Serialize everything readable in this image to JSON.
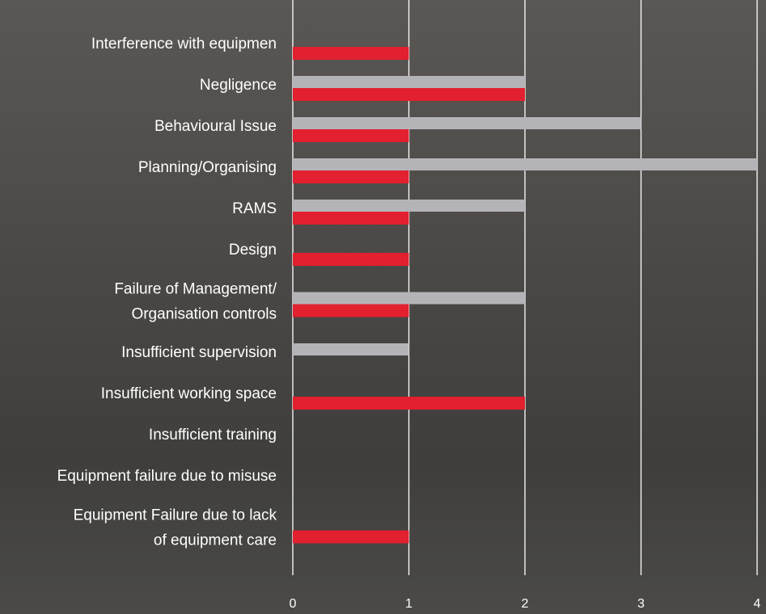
{
  "chart_data": {
    "type": "hbar",
    "categories": [
      "Interference with equipmen",
      "Negligence",
      "Behavioural Issue",
      "Planning/Organising",
      "RAMS",
      "Design",
      [
        "Failure of Management/",
        "Organisation controls"
      ],
      "Insufficient supervision",
      "Insufficient working space",
      "Insufficient training",
      "Equipment failure due to misuse",
      [
        "Equipment Failure due to lack",
        "of equipment care"
      ]
    ],
    "series": [
      {
        "color": "#b4b4b8",
        "values": [
          0,
          2,
          3,
          4,
          2,
          0,
          2,
          1,
          0,
          0,
          0,
          0
        ]
      },
      {
        "color": "#e2202f",
        "values": [
          1,
          2,
          1,
          1,
          1,
          1,
          1,
          0,
          2,
          0,
          0,
          1
        ]
      }
    ],
    "xlim": [
      0,
      4
    ],
    "xticks": [
      0,
      1,
      2,
      3,
      4
    ],
    "grid": true
  }
}
